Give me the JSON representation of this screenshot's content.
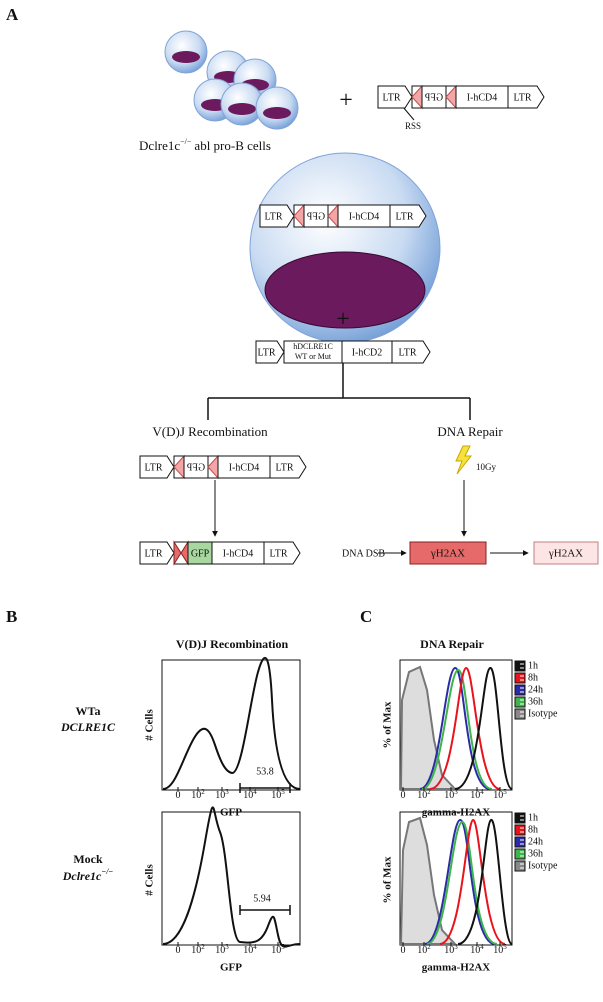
{
  "figure": {
    "panel_a": {
      "label": "A",
      "cell_label": {
        "name": "Dclre1c",
        "sup": "−/−",
        "rest": "abl pro-B cells"
      },
      "plus_1": "+",
      "plus_2": "+",
      "construct_1": {
        "ltr_left": "LTR",
        "gfp": "GFP",
        "hcd4": "I-hCD4",
        "ltr_right": "LTR",
        "rss": "RSS"
      },
      "construct_2": {
        "ltr_left": "LTR",
        "gfp": "GFP",
        "hcd4": "I-hCD4",
        "ltr_right": "LTR"
      },
      "construct_3": {
        "ltr_left": "LTR",
        "gene": "hDCLRE1C",
        "gene_variant": "WT or Mut",
        "hcd2": "I-hCD2",
        "ltr_right": "LTR"
      },
      "branch_left": "V(D)J Recombination",
      "branch_right": "DNA Repair",
      "construct_4": {
        "ltr_left": "LTR",
        "gfp": "GFP",
        "hcd4": "I-hCD4",
        "ltr_right": "LTR"
      },
      "construct_5": {
        "ltr_left": "LTR",
        "gfp": "GFP",
        "hcd4": "I-hCD4",
        "ltr_right": "LTR"
      },
      "dose": "10Gy",
      "dna_dsb": "DNA DSB",
      "gh2ax_low": "γH2AX",
      "gh2ax_high": "γH2AX"
    },
    "panel_b": {
      "label": "B",
      "title": "V(D)J Recombination",
      "y_label": "# Cells",
      "x_label": "GFP",
      "x_ticks": [
        {
          "base": "0"
        },
        {
          "base": "10",
          "exp": "2"
        },
        {
          "base": "10",
          "exp": "3"
        },
        {
          "base": "10",
          "exp": "4"
        },
        {
          "base": "10",
          "exp": "5"
        }
      ],
      "rows": [
        {
          "name": "WTa",
          "genotype": "DCLRE1C",
          "gate": 53.8
        },
        {
          "name": "Mock",
          "genotype": "Dclre1c",
          "genotype_sup": "−/−",
          "gate": 5.94
        }
      ]
    },
    "panel_c": {
      "label": "C",
      "title": "DNA Repair",
      "y_label": "% of Max",
      "x_label": "gamma-H2AX",
      "x_ticks": [
        {
          "base": "0"
        },
        {
          "base": "10",
          "exp": "2"
        },
        {
          "base": "10",
          "exp": "3"
        },
        {
          "base": "10",
          "exp": "4"
        },
        {
          "base": "10",
          "exp": "5"
        }
      ],
      "legend": [
        "1h",
        "8h",
        "24h",
        "36h",
        "Isotype"
      ]
    }
  }
}
